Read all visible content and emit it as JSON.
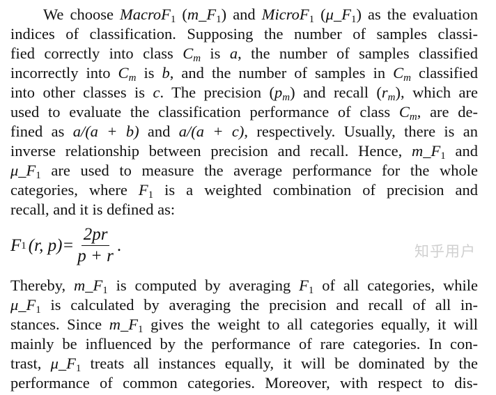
{
  "paragraph1": [
    [
      [
        "We choose ",
        "n"
      ],
      [
        "MacroF",
        "i"
      ],
      [
        "1",
        "s"
      ],
      [
        " (",
        "n"
      ],
      [
        "m_F",
        "i"
      ],
      [
        "1",
        "s"
      ],
      [
        ") and ",
        "n"
      ],
      [
        "MicroF",
        "i"
      ],
      [
        "1",
        "s"
      ],
      [
        " (",
        "n"
      ],
      [
        "μ_F",
        "i"
      ],
      [
        "1",
        "s"
      ],
      [
        ") as the evaluation",
        "n"
      ]
    ],
    [
      [
        "indices of classification. Supposing the number of samples classi-",
        "n"
      ]
    ],
    [
      [
        "fied correctly into class ",
        "n"
      ],
      [
        "C",
        "i"
      ],
      [
        "m",
        "si"
      ],
      [
        " is ",
        "n"
      ],
      [
        "a",
        "i"
      ],
      [
        ", the number of samples classified",
        "n"
      ]
    ],
    [
      [
        "incorrectly into ",
        "n"
      ],
      [
        "C",
        "i"
      ],
      [
        "m",
        "si"
      ],
      [
        " is ",
        "n"
      ],
      [
        "b",
        "i"
      ],
      [
        ", and the number of samples in ",
        "n"
      ],
      [
        "C",
        "i"
      ],
      [
        "m",
        "si"
      ],
      [
        " classified",
        "n"
      ]
    ],
    [
      [
        "into other classes is ",
        "n"
      ],
      [
        "c",
        "i"
      ],
      [
        ". The precision (",
        "n"
      ],
      [
        "p",
        "i"
      ],
      [
        "m",
        "si"
      ],
      [
        ") and recall (",
        "n"
      ],
      [
        "r",
        "i"
      ],
      [
        "m",
        "si"
      ],
      [
        "), which are",
        "n"
      ]
    ],
    [
      [
        "used to evaluate the classification performance of class ",
        "n"
      ],
      [
        "C",
        "i"
      ],
      [
        "m",
        "si"
      ],
      [
        ", are de-",
        "n"
      ]
    ],
    [
      [
        "fined as ",
        "n"
      ],
      [
        "a/(a + b)",
        "i"
      ],
      [
        " and ",
        "n"
      ],
      [
        "a/(a + c)",
        "i"
      ],
      [
        ", respectively. Usually, there is an",
        "n"
      ]
    ],
    [
      [
        "inverse relationship between precision and recall. Hence, ",
        "n"
      ],
      [
        "m_F",
        "i"
      ],
      [
        "1",
        "s"
      ],
      [
        " and",
        "n"
      ]
    ],
    [
      [
        "μ_F",
        "i"
      ],
      [
        "1",
        "s"
      ],
      [
        " are used to measure the average performance for the whole",
        "n"
      ]
    ],
    [
      [
        "categories, where ",
        "n"
      ],
      [
        "F",
        "i"
      ],
      [
        "1",
        "s"
      ],
      [
        " is a weighted combination of precision and",
        "n"
      ]
    ],
    [
      [
        "recall, and it is defined as:",
        "n"
      ]
    ]
  ],
  "formula": {
    "lhs": "F",
    "lhs_sub": "1",
    "args": "(r, p)=",
    "numerator": "2pr",
    "denominator": "p + r",
    "end": "."
  },
  "paragraph2": [
    [
      [
        "Thereby, ",
        "n"
      ],
      [
        "m_F",
        "i"
      ],
      [
        "1",
        "s"
      ],
      [
        " is computed by averaging ",
        "n"
      ],
      [
        "F",
        "i"
      ],
      [
        "1",
        "s"
      ],
      [
        " of all categories, while",
        "n"
      ]
    ],
    [
      [
        "μ_F",
        "i"
      ],
      [
        "1",
        "s"
      ],
      [
        " is calculated by averaging the precision and recall of all in-",
        "n"
      ]
    ],
    [
      [
        "stances. Since ",
        "n"
      ],
      [
        "m_F",
        "i"
      ],
      [
        "1",
        "s"
      ],
      [
        " gives the weight to all categories equally, it will",
        "n"
      ]
    ],
    [
      [
        "mainly be influenced by the performance of rare categories. In con-",
        "n"
      ]
    ],
    [
      [
        "trast, ",
        "n"
      ],
      [
        "μ_F",
        "i"
      ],
      [
        "1",
        "s"
      ],
      [
        " treats all instances equally, it will be dominated by the",
        "n"
      ]
    ],
    [
      [
        "performance of common categories. Moreover, with respect to dis-",
        "n"
      ]
    ]
  ],
  "watermark": "知乎用户"
}
